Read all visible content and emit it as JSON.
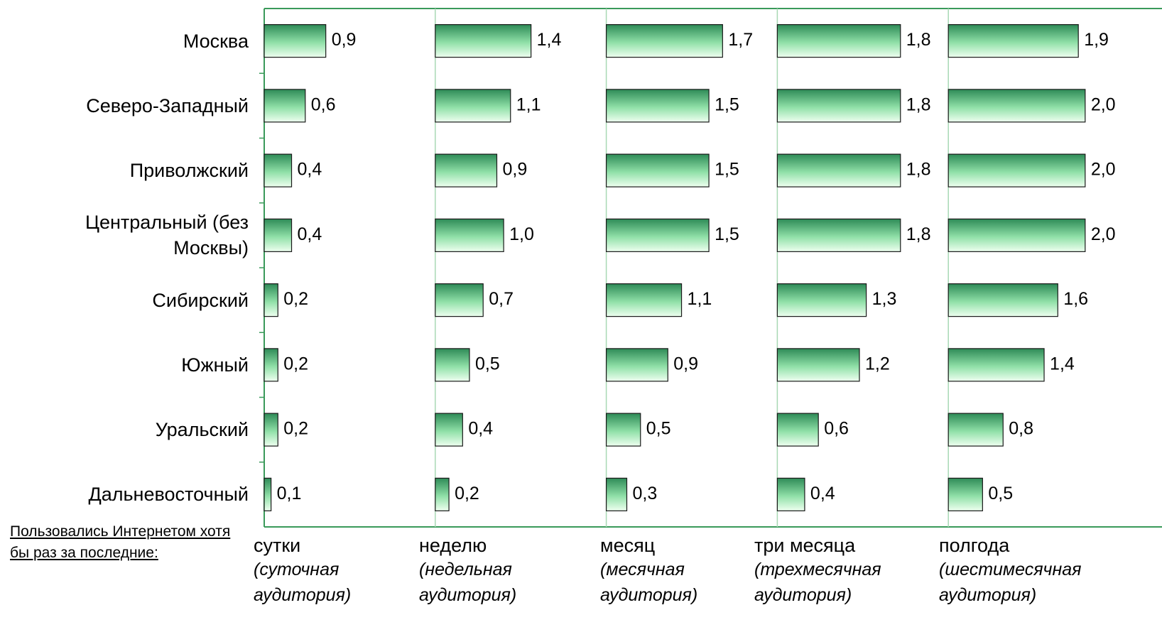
{
  "chart_data": {
    "type": "bar",
    "orientation": "horizontal",
    "categories": [
      "Москва",
      "Северо-Западный",
      "Приволжский",
      "Центральный (без Москвы)",
      "Сибирский",
      "Южный",
      "Уральский",
      "Дальневосточный"
    ],
    "axis_label": "Пользовались Интернетом хотя бы раз за последние:",
    "xlim": [
      0,
      2.5
    ],
    "color": "#2e8b57",
    "series": [
      {
        "name": "сутки",
        "description": "(суточная аудитория)",
        "values": [
          0.9,
          0.6,
          0.4,
          0.4,
          0.2,
          0.2,
          0.2,
          0.1
        ],
        "value_labels": [
          "0,9",
          "0,6",
          "0,4",
          "0,4",
          "0,2",
          "0,2",
          "0,2",
          "0,1"
        ]
      },
      {
        "name": "неделю",
        "description": "(недельная аудитория)",
        "values": [
          1.4,
          1.1,
          0.9,
          1.0,
          0.7,
          0.5,
          0.4,
          0.2
        ],
        "value_labels": [
          "1,4",
          "1,1",
          "0,9",
          "1,0",
          "0,7",
          "0,5",
          "0,4",
          "0,2"
        ]
      },
      {
        "name": "месяц",
        "description": "(месячная аудитория)",
        "values": [
          1.7,
          1.5,
          1.5,
          1.5,
          1.1,
          0.9,
          0.5,
          0.3
        ],
        "value_labels": [
          "1,7",
          "1,5",
          "1,5",
          "1,5",
          "1,1",
          "0,9",
          "0,5",
          "0,3"
        ]
      },
      {
        "name": "три месяца",
        "description": "(трехмесячная аудитория)",
        "values": [
          1.8,
          1.8,
          1.8,
          1.8,
          1.3,
          1.2,
          0.6,
          0.4
        ],
        "value_labels": [
          "1,8",
          "1,8",
          "1,8",
          "1,8",
          "1,3",
          "1,2",
          "0,6",
          "0,4"
        ]
      },
      {
        "name": "полгода",
        "description": "(шестимесячная аудитория)",
        "values": [
          1.9,
          2.0,
          2.0,
          2.0,
          1.6,
          1.4,
          0.8,
          0.5
        ],
        "value_labels": [
          "1,9",
          "2,0",
          "2,0",
          "2,0",
          "1,6",
          "1,4",
          "0,8",
          "0,5"
        ]
      }
    ]
  }
}
